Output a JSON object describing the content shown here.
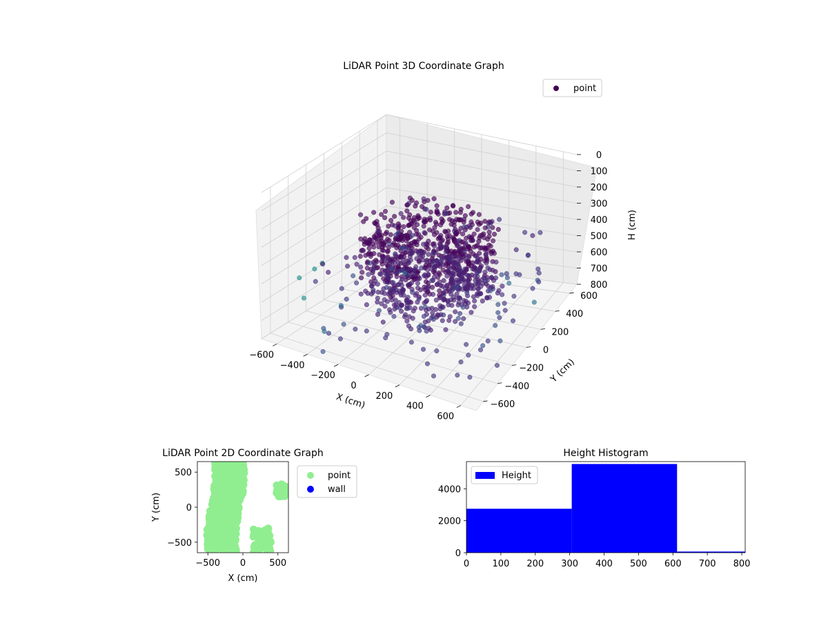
{
  "figure": {
    "background": "#ffffff"
  },
  "chart_data": [
    {
      "type": "scatter",
      "projection": "3d",
      "title": "LiDAR Point 3D Coordinate Graph",
      "xlabel": "X (cm)",
      "ylabel": "Y (cm)",
      "zlabel": "H (cm)",
      "x_ticks": [
        -600,
        -400,
        -200,
        0,
        200,
        400,
        600
      ],
      "y_ticks": [
        -600,
        -400,
        -200,
        0,
        200,
        400,
        600
      ],
      "z_ticks": [
        0,
        100,
        200,
        300,
        400,
        500,
        600,
        700,
        800
      ],
      "xlim": [
        -700,
        700
      ],
      "ylim": [
        -700,
        700
      ],
      "zlim": [
        0,
        800
      ],
      "z_axis_inverted": true,
      "colormap": "viridis",
      "grid": true,
      "legend": {
        "position": "upper-right",
        "entries": [
          "point"
        ]
      },
      "series": [
        {
          "name": "point",
          "color": "#440154",
          "marker": "circle"
        }
      ],
      "description_note": "Dense ring-shaped cloud of points centered near the origin with scattered outliers"
    },
    {
      "type": "scatter",
      "title": "LiDAR Point 2D Coordinate Graph",
      "xlabel": "X (cm)",
      "ylabel": "Y (cm)",
      "x_ticks": [
        -500,
        0,
        500
      ],
      "y_ticks": [
        -500,
        0,
        500
      ],
      "xlim": [
        -650,
        650
      ],
      "ylim": [
        -650,
        650
      ],
      "legend": {
        "position": "outside-right",
        "entries": [
          "point",
          "wall"
        ]
      },
      "series": [
        {
          "name": "point",
          "color": "#90ee90"
        },
        {
          "name": "wall",
          "color": "#0000ff"
        }
      ]
    },
    {
      "type": "bar",
      "title": "Height Histogram",
      "xlabel": "",
      "ylabel": "",
      "x_ticks": [
        0,
        100,
        200,
        300,
        400,
        500,
        600,
        700,
        800
      ],
      "y_ticks": [
        0,
        2000,
        4000
      ],
      "xlim": [
        0,
        810
      ],
      "ylim": [
        0,
        5700
      ],
      "legend": {
        "position": "upper-left",
        "entries": [
          "Height"
        ]
      },
      "series": [
        {
          "name": "Height",
          "color": "#0000ff",
          "bins": [
            {
              "start": 0,
              "end": 306,
              "count": 2750
            },
            {
              "start": 306,
              "end": 612,
              "count": 5550
            },
            {
              "start": 612,
              "end": 810,
              "count": 70
            }
          ]
        }
      ]
    }
  ]
}
